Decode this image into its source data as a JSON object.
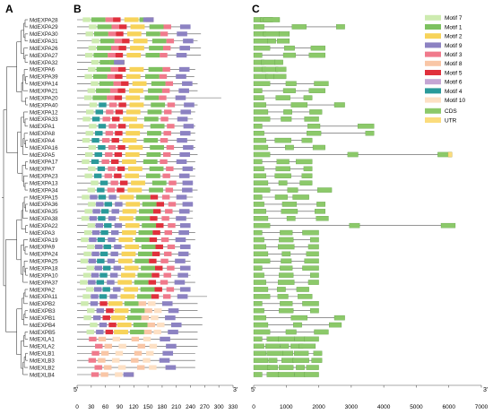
{
  "panels": {
    "a": "A",
    "b": "B",
    "c": "C"
  },
  "genes": [
    "MdEXPA28",
    "MdEXPA29",
    "MdEXPA30",
    "MdEXPA31",
    "MdEXPA26",
    "MdEXPA27",
    "MdEXPA32",
    "MdEXPA6",
    "MdEXPA39",
    "MdEXPA14",
    "MdEXPA21",
    "MdEXPA20",
    "MdEXPA40",
    "MdEXPA12",
    "MdEXPA33",
    "MdEXPA1",
    "MdEXPA8",
    "MdEXPA4",
    "MdEXPA16",
    "MdEXPA5",
    "MdEXPA17",
    "MdEXPA7",
    "MdEXPA23",
    "MdEXPA13",
    "MdEXPA34",
    "MdEXPA15",
    "MdEXPA36",
    "MdEXPA35",
    "MdEXPA38",
    "MdEXPA22",
    "MdEXPA3",
    "MdEXPA19",
    "MdEXPA9",
    "MdEXPA24",
    "MdEXPA25",
    "MdEXPA18",
    "MdEXPA10",
    "MdEXPA37",
    "MdEXPA2",
    "MdEXPA11",
    "MdEXPB2",
    "MdEXPB3",
    "MdEXPB1",
    "MdEXPB4",
    "MdEXPB5",
    "MdEXLA1",
    "MdEXLA2",
    "MdEXLB1",
    "MdEXLB3",
    "MdEXLB2",
    "MdEXLB4"
  ],
  "motif_legend": [
    {
      "name": "Motif 7",
      "color": "#cdebb0"
    },
    {
      "name": "Motif 1",
      "color": "#7dc160"
    },
    {
      "name": "Motif 2",
      "color": "#f7d35a"
    },
    {
      "name": "Motif 9",
      "color": "#8c82c2"
    },
    {
      "name": "Motif 3",
      "color": "#f07a8c"
    },
    {
      "name": "Motif 8",
      "color": "#f9c6a6"
    },
    {
      "name": "Motif 5",
      "color": "#e0303c"
    },
    {
      "name": "Motif 6",
      "color": "#c5a6d4"
    },
    {
      "name": "Motif 4",
      "color": "#2a9a9a"
    },
    {
      "name": "Motif 10",
      "color": "#fde0c4"
    }
  ],
  "structure_legend": [
    {
      "name": "CDS",
      "color": "#8cc96a"
    },
    {
      "name": "UTR",
      "color": "#fbdc7c"
    }
  ],
  "motif_axis": {
    "start_label": "5'",
    "end_label": "3'",
    "ticks": [
      0,
      30,
      60,
      90,
      120,
      150,
      180,
      210,
      240,
      270,
      300,
      330
    ]
  },
  "structure_axis": {
    "start_label": "5'",
    "end_label": "3'",
    "ticks": [
      0,
      1000,
      2000,
      3000,
      4000,
      5000,
      6000,
      7000
    ]
  },
  "colors": {
    "line": "#555555",
    "tree": "#444444"
  }
}
